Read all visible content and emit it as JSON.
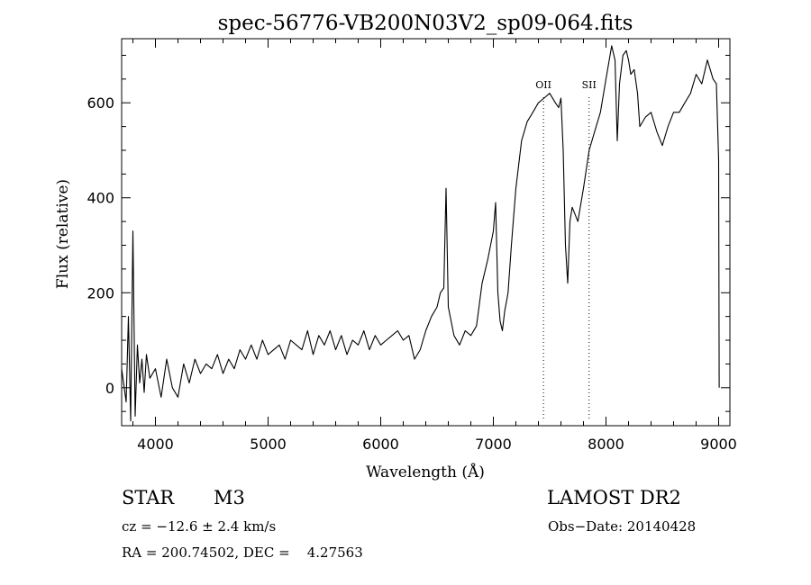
{
  "chart_data": {
    "type": "line",
    "title": "spec-56776-VB200N03V2_sp09-064.fits",
    "xlabel": "Wavelength (Å)",
    "ylabel": "Flux (relative)",
    "xlim": [
      3700,
      9100
    ],
    "ylim": [
      -80,
      735
    ],
    "x_ticks": [
      4000,
      5000,
      6000,
      7000,
      8000,
      9000
    ],
    "y_ticks": [
      0,
      200,
      400,
      600
    ],
    "grid": false,
    "line_color": "#000000",
    "series": [
      {
        "x": [
          3700,
          3740,
          3760,
          3780,
          3800,
          3820,
          3840,
          3860,
          3880,
          3900,
          3920,
          3950,
          4000,
          4050,
          4100,
          4150,
          4200,
          4250,
          4300,
          4350,
          4400,
          4450,
          4500,
          4550,
          4600,
          4650,
          4700,
          4750,
          4800,
          4850,
          4900,
          4950,
          5000,
          5050,
          5100,
          5150,
          5200,
          5250,
          5300,
          5350,
          5400,
          5450,
          5500,
          5550,
          5600,
          5650,
          5700,
          5750,
          5800,
          5850,
          5900,
          5950,
          6000,
          6050,
          6100,
          6150,
          6200,
          6250,
          6300,
          6350,
          6400,
          6450,
          6500,
          6530,
          6560,
          6580,
          6600,
          6650,
          6700,
          6750,
          6800,
          6850,
          6900,
          6950,
          7000,
          7020,
          7040,
          7060,
          7080,
          7100,
          7130,
          7160,
          7200,
          7250,
          7300,
          7350,
          7400,
          7450,
          7500,
          7550,
          7580,
          7600,
          7620,
          7640,
          7660,
          7680,
          7700,
          7750,
          7800,
          7850,
          7900,
          7950,
          8000,
          8050,
          8080,
          8100,
          8120,
          8150,
          8180,
          8200,
          8220,
          8250,
          8280,
          8300,
          8350,
          8400,
          8450,
          8500,
          8550,
          8600,
          8650,
          8700,
          8750,
          8800,
          8850,
          8900,
          8950,
          8980,
          9000,
          9005
        ],
        "y": [
          40,
          -30,
          150,
          -70,
          330,
          -60,
          90,
          10,
          60,
          -10,
          70,
          20,
          40,
          -20,
          60,
          0,
          -20,
          50,
          10,
          60,
          30,
          50,
          40,
          70,
          30,
          60,
          40,
          80,
          60,
          90,
          60,
          100,
          70,
          80,
          90,
          60,
          100,
          90,
          80,
          120,
          70,
          110,
          90,
          120,
          80,
          110,
          70,
          100,
          90,
          120,
          80,
          110,
          90,
          100,
          110,
          120,
          100,
          110,
          60,
          80,
          120,
          150,
          170,
          200,
          210,
          420,
          170,
          110,
          90,
          120,
          110,
          130,
          220,
          270,
          330,
          390,
          200,
          140,
          120,
          160,
          200,
          300,
          420,
          520,
          560,
          580,
          600,
          610,
          620,
          600,
          590,
          610,
          500,
          300,
          220,
          350,
          380,
          350,
          420,
          500,
          540,
          580,
          650,
          720,
          690,
          520,
          640,
          700,
          710,
          690,
          660,
          670,
          620,
          550,
          570,
          580,
          540,
          510,
          550,
          580,
          580,
          600,
          620,
          660,
          640,
          690,
          650,
          640,
          480,
          0
        ]
      }
    ],
    "annotations": [
      {
        "label": "OII",
        "x": 7445
      },
      {
        "label": "SII",
        "x": 7850
      }
    ]
  },
  "footer": {
    "object_type": "STAR",
    "subclass": "M3",
    "survey": "LAMOST DR2",
    "cz": "cz = −12.6 ± 2.4 km/s",
    "obs_date": "Obs−Date: 20140428",
    "coords": "RA = 200.74502, DEC =    4.27563"
  }
}
